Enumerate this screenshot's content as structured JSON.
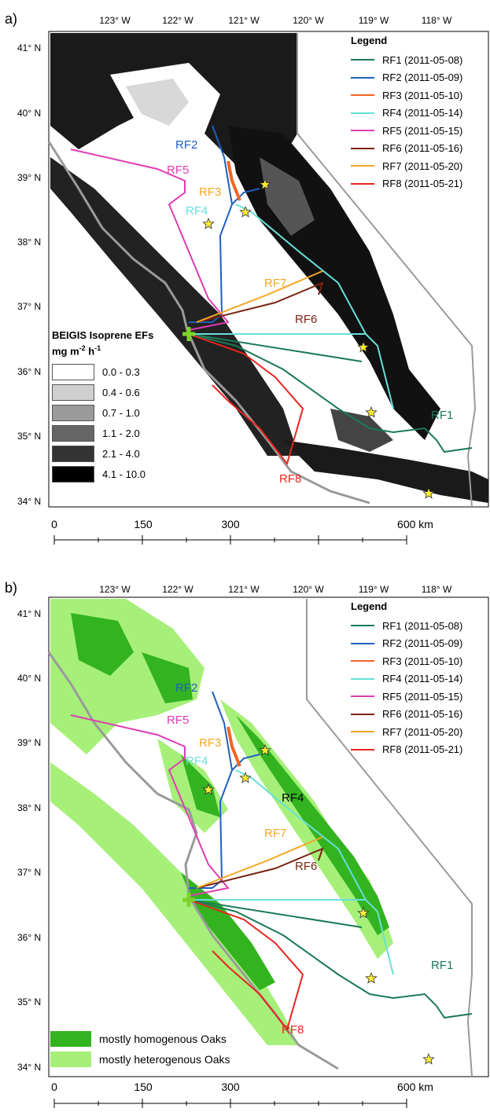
{
  "panels": {
    "a": {
      "label": "a)"
    },
    "b": {
      "label": "b)"
    }
  },
  "lon_ticks": [
    "123° W",
    "122° W",
    "121° W",
    "120° W",
    "119° W",
    "118° W"
  ],
  "lat_ticks": [
    "41° N",
    "40° N",
    "39° N",
    "38° N",
    "37° N",
    "36° N",
    "35° N",
    "34° N"
  ],
  "legend": {
    "title": "Legend",
    "items": [
      {
        "label": "RF1 (2011-05-08)",
        "color": "#1b7a55"
      },
      {
        "label": "RF2 (2011-05-09)",
        "color": "#1f5fbf"
      },
      {
        "label": "RF3 (2011-05-10)",
        "color": "#f26522"
      },
      {
        "label": "RF4 (2011-05-14)",
        "color": "#66e0d8"
      },
      {
        "label": "RF5 (2011-05-15)",
        "color": "#e03cb4"
      },
      {
        "label": "RF6 (2011-05-16)",
        "color": "#7a2414"
      },
      {
        "label": "RF7 (2011-05-20)",
        "color": "#f5a623"
      },
      {
        "label": "RF8 (2011-05-21)",
        "color": "#e8251f"
      }
    ]
  },
  "beigis": {
    "title": "BEIGIS Isoprene EFs",
    "unit_base": "mg m",
    "unit_exp1": "-2",
    "unit_mid": " h",
    "unit_exp2": "-1",
    "classes": [
      {
        "label": "0.0 - 0.3",
        "color": "#ffffff"
      },
      {
        "label": "0.4 - 0.6",
        "color": "#cfcfcf"
      },
      {
        "label": "0.7 - 1.0",
        "color": "#9a9a9a"
      },
      {
        "label": "1.1 - 2.0",
        "color": "#666666"
      },
      {
        "label": "2.1 - 4.0",
        "color": "#333333"
      },
      {
        "label": "4.1 - 10.0",
        "color": "#000000"
      }
    ]
  },
  "oaks": {
    "items": [
      {
        "label": "mostly homogenous Oaks",
        "color": "#33b31f"
      },
      {
        "label": "mostly heterogenous Oaks",
        "color": "#a6f07a"
      }
    ]
  },
  "scale_bar": {
    "labels": [
      "0",
      "150",
      "300",
      "600 km"
    ]
  },
  "flight_labels_a": [
    "RF2",
    "RF5",
    "RF3",
    "RF4",
    "RF7",
    "RF6",
    "RF1",
    "RF8"
  ],
  "flight_labels_b": [
    "RF2",
    "RF5",
    "RF3",
    "RF4",
    "RF4",
    "RF7",
    "RF6",
    "RF1",
    "RF8"
  ],
  "colors": {
    "border": "#9a9a9a",
    "coast": "#9a9a9a",
    "star": "#ffee33",
    "launch": "#7cd32b"
  }
}
